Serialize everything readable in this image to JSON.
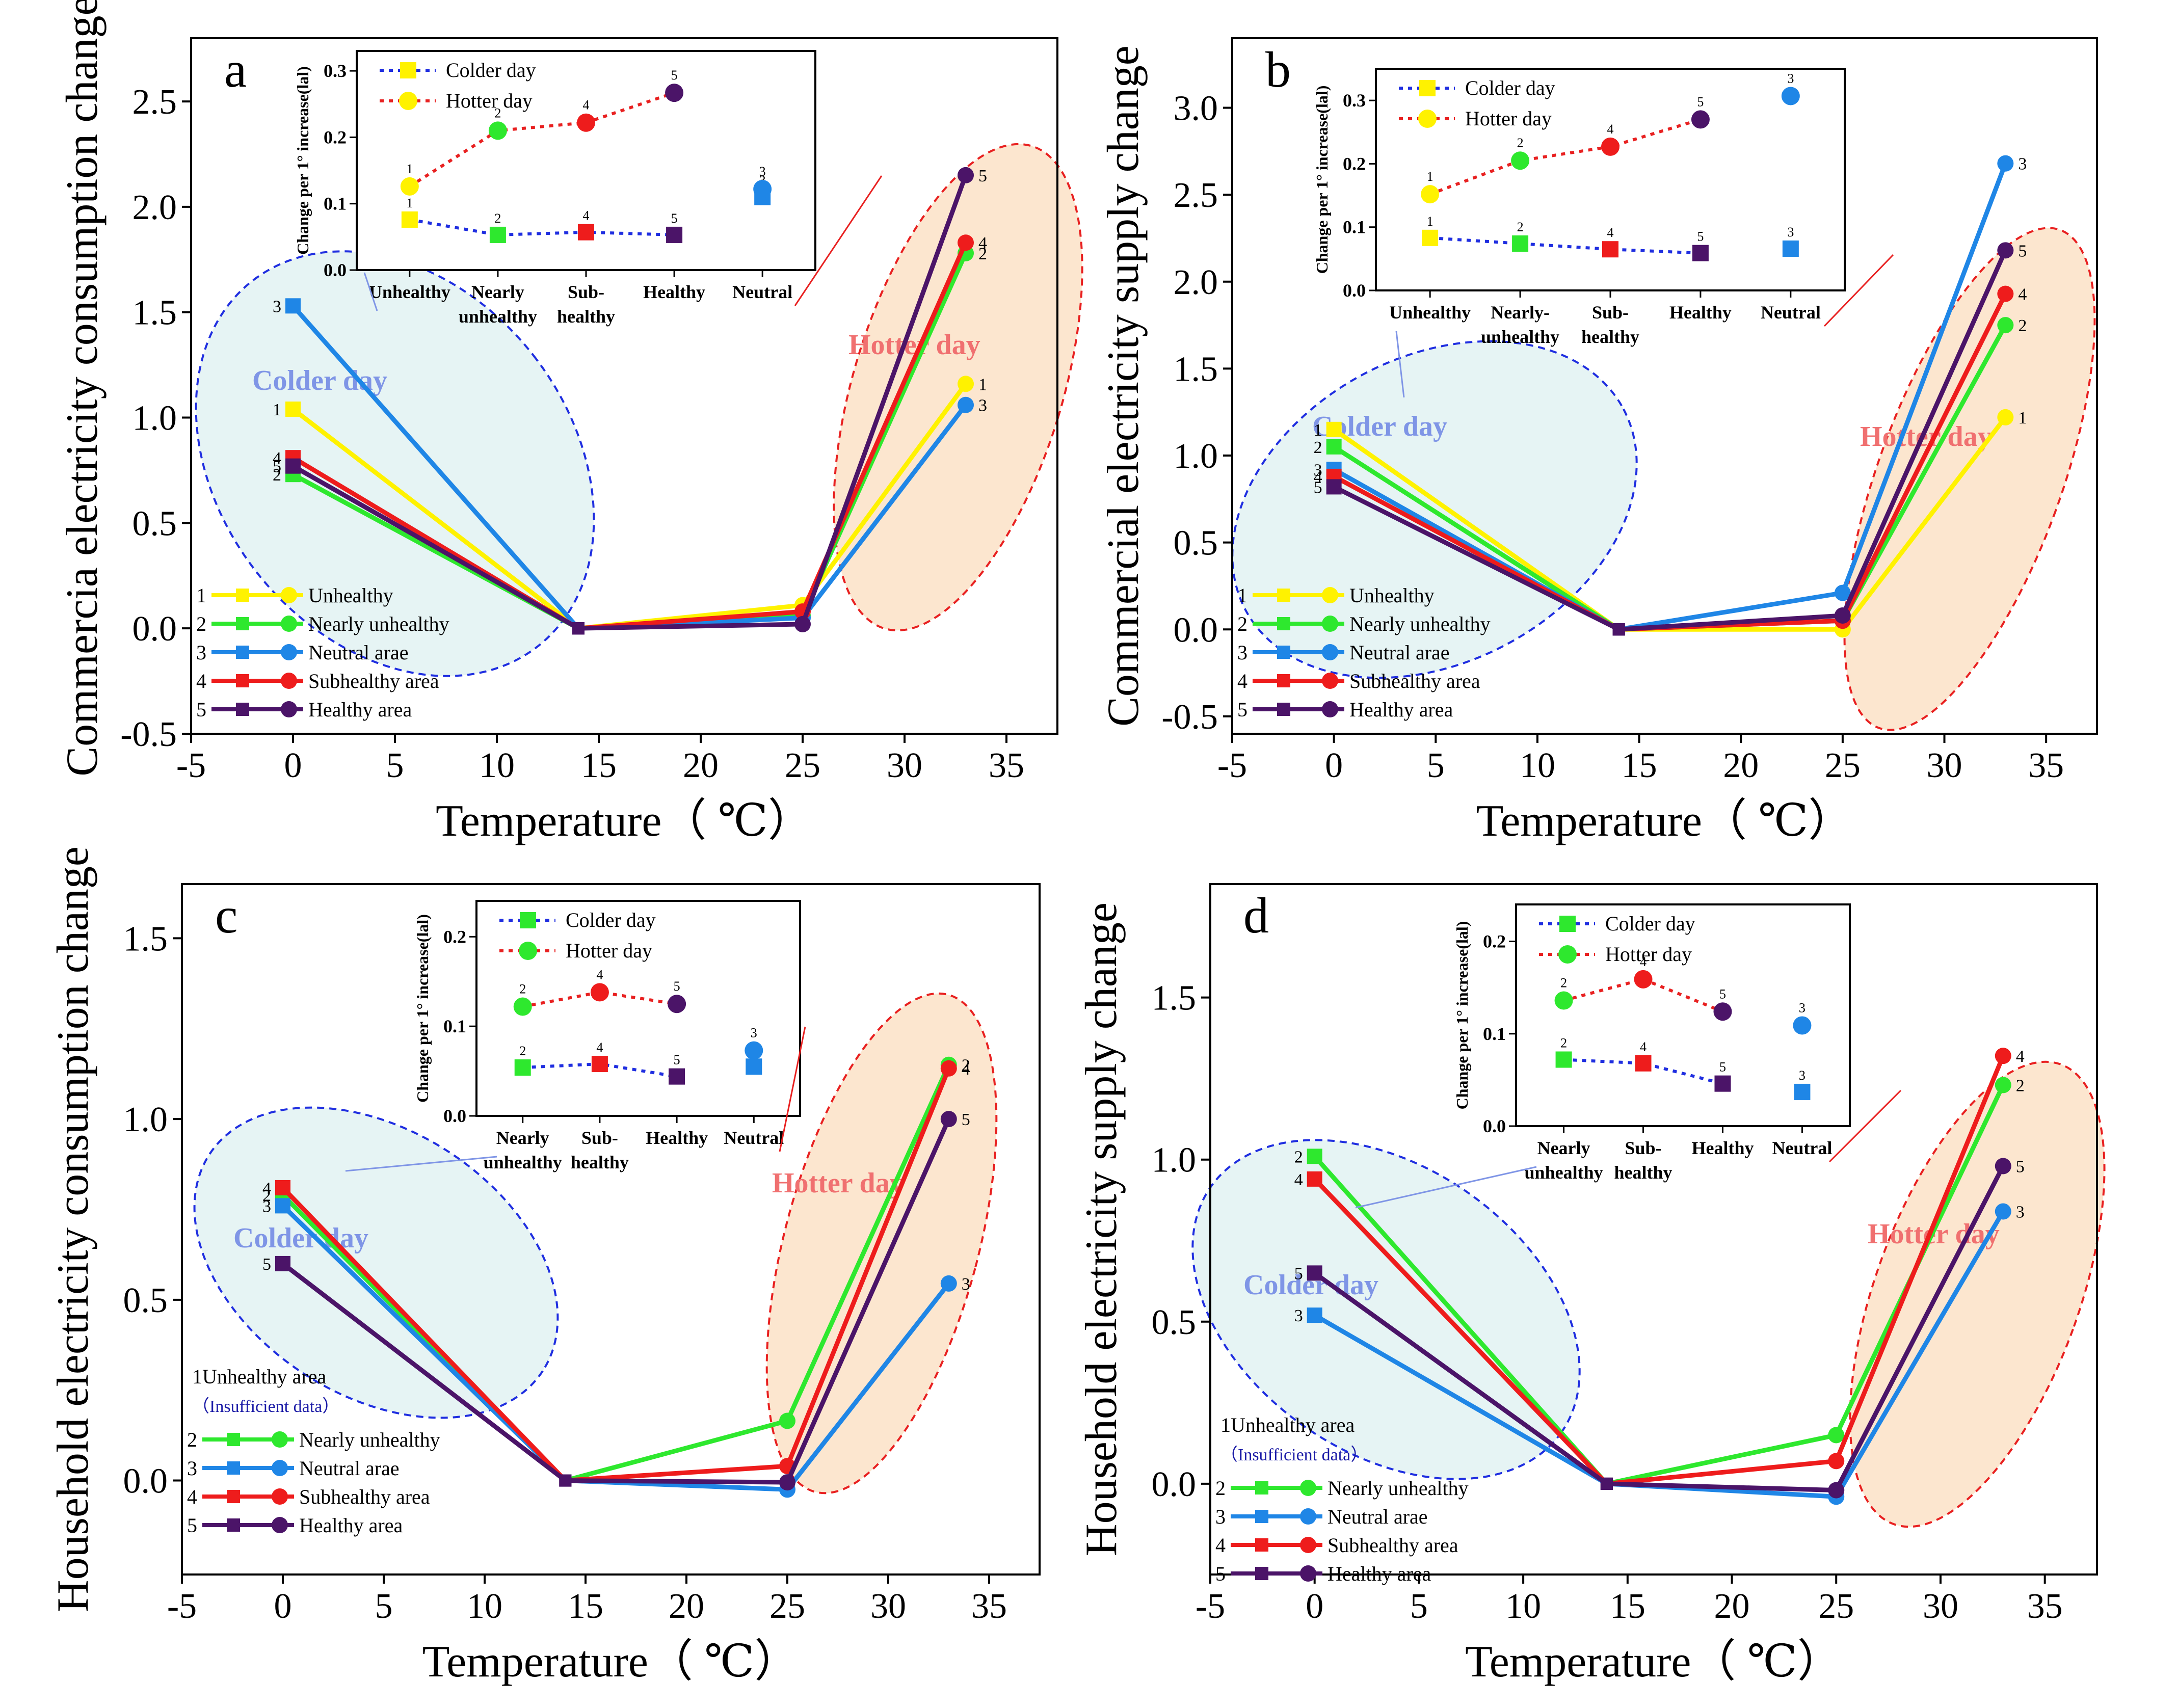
{
  "colors": {
    "unhealthy": "#fff200",
    "nearly": "#2ee82e",
    "neutral": "#1f86e6",
    "subhealthy": "#ee1c1c",
    "healthy": "#4b1468",
    "colder_dot": "#1f2ee0",
    "hotter_dot": "#e82020",
    "colder_fill": "#e6f4f4",
    "hotter_fill": "#fce6cf",
    "colder_text": "#7f95e6",
    "hotter_text": "#f07070"
  },
  "chart_data": [
    {
      "type": "line",
      "panel": "a",
      "xlabel": "Temperature（ ℃）",
      "ylabel": "Commercia electricity consumption change",
      "xlim": [
        -5,
        37.5
      ],
      "ylim": [
        -0.5,
        2.8
      ],
      "xticks": [
        "-5",
        "0",
        "5",
        "10",
        "15",
        "20",
        "25",
        "30",
        "35"
      ],
      "yticks": [
        "-0.5",
        "0.0",
        "0.5",
        "1.0",
        "1.5",
        "2.0",
        "2.5"
      ],
      "day_labels": {
        "colder": "Colder  day",
        "hotter": "Hotter day"
      },
      "legend": [
        {
          "num": "1",
          "label": "Unhealthy",
          "key": "unhealthy"
        },
        {
          "num": "2",
          "label": "Nearly unhealthy",
          "key": "nearly"
        },
        {
          "num": "3",
          "label": "Neutral arae",
          "key": "neutral"
        },
        {
          "num": "4",
          "label": "Subhealthy area",
          "key": "subhealthy"
        },
        {
          "num": "5",
          "label": "Healthy area",
          "key": "healthy"
        }
      ],
      "series": [
        {
          "num": "1",
          "key": "unhealthy",
          "x": [
            0,
            14,
            25,
            33
          ],
          "y": [
            1.04,
            0.0,
            0.11,
            1.16
          ]
        },
        {
          "num": "2",
          "key": "nearly",
          "x": [
            0,
            14,
            25,
            33
          ],
          "y": [
            0.73,
            0.0,
            0.06,
            1.78
          ]
        },
        {
          "num": "3",
          "key": "neutral",
          "x": [
            0,
            14,
            25,
            33
          ],
          "y": [
            1.53,
            0.0,
            0.05,
            1.06
          ]
        },
        {
          "num": "4",
          "key": "subhealthy",
          "x": [
            0,
            14,
            25,
            33
          ],
          "y": [
            0.81,
            0.0,
            0.08,
            1.83
          ]
        },
        {
          "num": "5",
          "key": "healthy",
          "x": [
            0,
            14,
            25,
            33
          ],
          "y": [
            0.77,
            0.0,
            0.02,
            2.15
          ]
        }
      ],
      "inset": {
        "ylabel": "Change per 1° increase(lal)",
        "categories": [
          "Unhealthy",
          "Nearly\nunhealthy",
          "Sub-\nhealthy",
          "Healthy",
          "Neutral"
        ],
        "ylim": [
          0,
          0.33
        ],
        "yticks": [
          "0.0",
          "0.1",
          "0.2",
          "0.3"
        ],
        "legend": [
          "Colder day",
          "Hotter day"
        ],
        "colder": [
          {
            "num": "1",
            "key": "unhealthy",
            "v": 0.076
          },
          {
            "num": "2",
            "key": "nearly",
            "v": 0.053
          },
          {
            "num": "4",
            "key": "subhealthy",
            "v": 0.057
          },
          {
            "num": "5",
            "key": "healthy",
            "v": 0.053
          },
          {
            "num": "3",
            "key": "neutral",
            "v": 0.11
          }
        ],
        "hotter": [
          {
            "num": "1",
            "key": "unhealthy",
            "v": 0.126
          },
          {
            "num": "2",
            "key": "nearly",
            "v": 0.21
          },
          {
            "num": "4",
            "key": "subhealthy",
            "v": 0.222
          },
          {
            "num": "5",
            "key": "healthy",
            "v": 0.267
          },
          {
            "num": "3",
            "key": "neutral",
            "v": 0.122
          }
        ]
      }
    },
    {
      "type": "line",
      "panel": "b",
      "xlabel": "Temperature（ ℃）",
      "ylabel": "Commercial electricity supply change",
      "xlim": [
        -5,
        37.5
      ],
      "ylim": [
        -0.6,
        3.4
      ],
      "xticks": [
        "-5",
        "0",
        "5",
        "10",
        "15",
        "20",
        "25",
        "30",
        "35"
      ],
      "yticks": [
        "-0.5",
        "0.0",
        "0.5",
        "1.0",
        "1.5",
        "2.0",
        "2.5",
        "3.0"
      ],
      "day_labels": {
        "colder": "Colder  day",
        "hotter": "Hotter day"
      },
      "legend": [
        {
          "num": "1",
          "label": "Unhealthy",
          "key": "unhealthy"
        },
        {
          "num": "2",
          "label": "Nearly unhealthy",
          "key": "nearly"
        },
        {
          "num": "3",
          "label": "Neutral arae",
          "key": "neutral"
        },
        {
          "num": "4",
          "label": "Subhealthy area",
          "key": "subhealthy"
        },
        {
          "num": "5",
          "label": "Healthy area",
          "key": "healthy"
        }
      ],
      "series": [
        {
          "num": "1",
          "key": "unhealthy",
          "x": [
            0,
            14,
            25,
            33
          ],
          "y": [
            1.15,
            0.0,
            0.0,
            1.22
          ]
        },
        {
          "num": "2",
          "key": "nearly",
          "x": [
            0,
            14,
            25,
            33
          ],
          "y": [
            1.05,
            0.0,
            0.05,
            1.75
          ]
        },
        {
          "num": "3",
          "key": "neutral",
          "x": [
            0,
            14,
            25,
            33
          ],
          "y": [
            0.92,
            0.0,
            0.21,
            2.68
          ]
        },
        {
          "num": "4",
          "key": "subhealthy",
          "x": [
            0,
            14,
            25,
            33
          ],
          "y": [
            0.88,
            0.0,
            0.05,
            1.93
          ]
        },
        {
          "num": "5",
          "key": "healthy",
          "x": [
            0,
            14,
            25,
            33
          ],
          "y": [
            0.82,
            0.0,
            0.08,
            2.18
          ]
        }
      ],
      "inset": {
        "ylabel": "Change per 1° increase(lal)",
        "categories": [
          "Unhealthy",
          "Nearly-\nunhealthy",
          "Sub-\nhealthy",
          "Healthy",
          "Neutral"
        ],
        "ylim": [
          0,
          0.35
        ],
        "yticks": [
          "0.0",
          "0.1",
          "0.2",
          "0.3"
        ],
        "legend": [
          "Colder day",
          "Hotter day"
        ],
        "colder": [
          {
            "num": "1",
            "key": "unhealthy",
            "v": 0.083
          },
          {
            "num": "2",
            "key": "nearly",
            "v": 0.074
          },
          {
            "num": "4",
            "key": "subhealthy",
            "v": 0.065
          },
          {
            "num": "5",
            "key": "healthy",
            "v": 0.059
          },
          {
            "num": "3",
            "key": "neutral",
            "v": 0.066
          }
        ],
        "hotter": [
          {
            "num": "1",
            "key": "unhealthy",
            "v": 0.152
          },
          {
            "num": "2",
            "key": "nearly",
            "v": 0.205
          },
          {
            "num": "4",
            "key": "subhealthy",
            "v": 0.227
          },
          {
            "num": "5",
            "key": "healthy",
            "v": 0.27
          },
          {
            "num": "3",
            "key": "neutral",
            "v": 0.307
          }
        ]
      }
    },
    {
      "type": "line",
      "panel": "c",
      "xlabel": "Temperature（ ℃）",
      "ylabel": "Household electricity consumption change",
      "xlim": [
        -5,
        37.5
      ],
      "ylim": [
        -0.26,
        1.65
      ],
      "xticks": [
        "-5",
        "0",
        "5",
        "10",
        "15",
        "20",
        "25",
        "30",
        "35"
      ],
      "yticks": [
        "0.0",
        "0.5",
        "1.0",
        "1.5"
      ],
      "day_labels": {
        "colder": "Colder  day",
        "hotter": "Hotter day"
      },
      "legend_note": {
        "title": "1Unhealthy area",
        "note": "（Insufficient data）"
      },
      "legend": [
        {
          "num": "2",
          "label": "Nearly unhealthy",
          "key": "nearly"
        },
        {
          "num": "3",
          "label": "Neutral arae",
          "key": "neutral"
        },
        {
          "num": "4",
          "label": "Subhealthy area",
          "key": "subhealthy"
        },
        {
          "num": "5",
          "label": "Healthy area",
          "key": "healthy"
        }
      ],
      "series": [
        {
          "num": "2",
          "key": "nearly",
          "x": [
            0,
            14,
            25,
            33
          ],
          "y": [
            0.79,
            0.0,
            0.165,
            1.15
          ]
        },
        {
          "num": "3",
          "key": "neutral",
          "x": [
            0,
            14,
            25,
            33
          ],
          "y": [
            0.76,
            0.0,
            -0.025,
            0.545
          ]
        },
        {
          "num": "4",
          "key": "subhealthy",
          "x": [
            0,
            14,
            25,
            33
          ],
          "y": [
            0.81,
            0.0,
            0.04,
            1.14
          ]
        },
        {
          "num": "5",
          "key": "healthy",
          "x": [
            0,
            14,
            25,
            33
          ],
          "y": [
            0.6,
            0.0,
            -0.005,
            1.0
          ]
        }
      ],
      "inset": {
        "ylabel": "Change per 1° increase(lal)",
        "categories": [
          "Nearly\nunhealthy",
          "Sub-\nhealthy",
          "Healthy",
          "Neutral"
        ],
        "ylim": [
          0,
          0.24
        ],
        "yticks": [
          "0.0",
          "0.1",
          "0.2"
        ],
        "legend": [
          "Colder day",
          "Hotter day"
        ],
        "colder": [
          {
            "num": "2",
            "key": "nearly",
            "v": 0.054
          },
          {
            "num": "4",
            "key": "subhealthy",
            "v": 0.058
          },
          {
            "num": "5",
            "key": "healthy",
            "v": 0.044
          },
          {
            "num": "3",
            "key": "neutral",
            "v": 0.055
          }
        ],
        "hotter": [
          {
            "num": "2",
            "key": "nearly",
            "v": 0.122
          },
          {
            "num": "4",
            "key": "subhealthy",
            "v": 0.138
          },
          {
            "num": "5",
            "key": "healthy",
            "v": 0.125
          },
          {
            "num": "3",
            "key": "neutral",
            "v": 0.073
          }
        ]
      }
    },
    {
      "type": "line",
      "panel": "d",
      "xlabel": "Temperature（ ℃）",
      "ylabel": "Household electricity supply change",
      "xlim": [
        -5,
        37.5
      ],
      "ylim": [
        -0.28,
        1.85
      ],
      "xticks": [
        "-5",
        "0",
        "5",
        "10",
        "15",
        "20",
        "25",
        "30",
        "35"
      ],
      "yticks": [
        "0.0",
        "0.5",
        "1.0",
        "1.5"
      ],
      "day_labels": {
        "colder": "Colder  day",
        "hotter": "Hotter day"
      },
      "legend_note": {
        "title": "1Unhealthy area",
        "note": "（Insufficient data）"
      },
      "legend": [
        {
          "num": "2",
          "label": "Nearly unhealthy",
          "key": "nearly"
        },
        {
          "num": "3",
          "label": "Neutral arae",
          "key": "neutral"
        },
        {
          "num": "4",
          "label": "Subhealthy area",
          "key": "subhealthy"
        },
        {
          "num": "5",
          "label": "Healthy area",
          "key": "healthy"
        }
      ],
      "series": [
        {
          "num": "2",
          "key": "nearly",
          "x": [
            0,
            14,
            25,
            33
          ],
          "y": [
            1.01,
            0.0,
            0.15,
            1.23
          ]
        },
        {
          "num": "3",
          "key": "neutral",
          "x": [
            0,
            14,
            25,
            33
          ],
          "y": [
            0.52,
            0.0,
            -0.04,
            0.84
          ]
        },
        {
          "num": "4",
          "key": "subhealthy",
          "x": [
            0,
            14,
            25,
            33
          ],
          "y": [
            0.94,
            0.0,
            0.07,
            1.32
          ]
        },
        {
          "num": "5",
          "key": "healthy",
          "x": [
            0,
            14,
            25,
            33
          ],
          "y": [
            0.65,
            0.0,
            -0.02,
            0.98
          ]
        }
      ],
      "inset": {
        "ylabel": "Change per 1° increase(lal)",
        "categories": [
          "Nearly\nunhealthy",
          "Sub-\nhealthy",
          "Healthy",
          "Neutral"
        ],
        "ylim": [
          0,
          0.24
        ],
        "yticks": [
          "0.0",
          "0.1",
          "0.2"
        ],
        "legend": [
          "Colder day",
          "Hotter day"
        ],
        "colder": [
          {
            "num": "2",
            "key": "nearly",
            "v": 0.072
          },
          {
            "num": "4",
            "key": "subhealthy",
            "v": 0.068
          },
          {
            "num": "5",
            "key": "healthy",
            "v": 0.046
          },
          {
            "num": "3",
            "key": "neutral",
            "v": 0.037
          }
        ],
        "hotter": [
          {
            "num": "2",
            "key": "nearly",
            "v": 0.136
          },
          {
            "num": "4",
            "key": "subhealthy",
            "v": 0.159
          },
          {
            "num": "5",
            "key": "healthy",
            "v": 0.124
          },
          {
            "num": "3",
            "key": "neutral",
            "v": 0.109
          }
        ]
      }
    }
  ]
}
